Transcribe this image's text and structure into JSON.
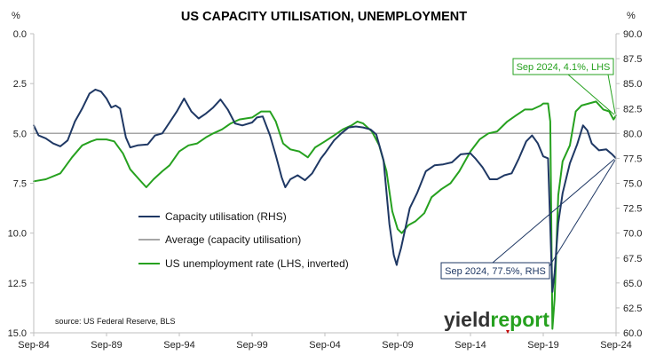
{
  "chart_data": {
    "type": "line",
    "title": "US CAPACITY UTILISATION, UNEMPLOYMENT",
    "left_axis": {
      "unit": "%",
      "range": [
        15,
        0
      ],
      "inverted": true,
      "ticks": [
        "0.0",
        "2.5",
        "5.0",
        "7.5",
        "10.0",
        "12.5",
        "15.0"
      ]
    },
    "right_axis": {
      "unit": "%",
      "range": [
        60,
        90
      ],
      "ticks": [
        "90.0",
        "87.5",
        "85.0",
        "82.5",
        "80.0",
        "77.5",
        "75.0",
        "72.5",
        "70.0",
        "67.5",
        "65.0",
        "62.5",
        "60.0"
      ]
    },
    "x_axis": {
      "range": [
        1984.67,
        2024.67
      ],
      "ticks": [
        "Sep-84",
        "Sep-89",
        "Sep-94",
        "Sep-99",
        "Sep-04",
        "Sep-09",
        "Sep-14",
        "Sep-19",
        "Sep-24"
      ]
    },
    "grid": false,
    "legend_placement": "center-left",
    "series": [
      {
        "name": "Capacity utilisation (RHS)",
        "axis": "right",
        "color": "#1F3864",
        "points": [
          [
            1984.67,
            80.8
          ],
          [
            1985.0,
            79.8
          ],
          [
            1985.5,
            79.5
          ],
          [
            1986.0,
            79.0
          ],
          [
            1986.5,
            78.7
          ],
          [
            1987.0,
            79.3
          ],
          [
            1987.5,
            81.2
          ],
          [
            1988.0,
            82.5
          ],
          [
            1988.5,
            84.0
          ],
          [
            1988.9,
            84.4
          ],
          [
            1989.3,
            84.2
          ],
          [
            1989.67,
            83.5
          ],
          [
            1990.0,
            82.6
          ],
          [
            1990.3,
            82.8
          ],
          [
            1990.6,
            82.5
          ],
          [
            1991.0,
            79.6
          ],
          [
            1991.3,
            78.6
          ],
          [
            1991.8,
            78.8
          ],
          [
            1992.5,
            78.9
          ],
          [
            1993.0,
            79.8
          ],
          [
            1993.5,
            80.0
          ],
          [
            1994.0,
            81.1
          ],
          [
            1994.5,
            82.2
          ],
          [
            1995.0,
            83.5
          ],
          [
            1995.5,
            82.2
          ],
          [
            1996.0,
            81.5
          ],
          [
            1996.5,
            82.0
          ],
          [
            1997.0,
            82.6
          ],
          [
            1997.5,
            83.4
          ],
          [
            1998.0,
            82.4
          ],
          [
            1998.5,
            81.0
          ],
          [
            1999.0,
            80.8
          ],
          [
            1999.67,
            81.1
          ],
          [
            2000.0,
            81.6
          ],
          [
            2000.4,
            81.7
          ],
          [
            2000.9,
            79.8
          ],
          [
            2001.3,
            77.8
          ],
          [
            2001.7,
            75.6
          ],
          [
            2001.95,
            74.6
          ],
          [
            2002.3,
            75.4
          ],
          [
            2002.8,
            75.8
          ],
          [
            2003.3,
            75.3
          ],
          [
            2003.8,
            76.0
          ],
          [
            2004.4,
            77.5
          ],
          [
            2004.67,
            78.0
          ],
          [
            2005.3,
            79.3
          ],
          [
            2005.8,
            80.0
          ],
          [
            2006.3,
            80.6
          ],
          [
            2006.8,
            80.7
          ],
          [
            2007.3,
            80.6
          ],
          [
            2007.8,
            80.4
          ],
          [
            2008.2,
            79.9
          ],
          [
            2008.7,
            77.3
          ],
          [
            2009.1,
            70.9
          ],
          [
            2009.4,
            67.8
          ],
          [
            2009.6,
            66.8
          ],
          [
            2009.67,
            67.3
          ],
          [
            2009.9,
            68.5
          ],
          [
            2010.5,
            72.5
          ],
          [
            2011.0,
            74.0
          ],
          [
            2011.6,
            76.2
          ],
          [
            2012.2,
            76.8
          ],
          [
            2012.8,
            76.9
          ],
          [
            2013.4,
            77.1
          ],
          [
            2014.0,
            77.9
          ],
          [
            2014.67,
            78.0
          ],
          [
            2015.0,
            77.5
          ],
          [
            2015.5,
            76.6
          ],
          [
            2016.0,
            75.4
          ],
          [
            2016.5,
            75.4
          ],
          [
            2017.0,
            75.8
          ],
          [
            2017.5,
            76.0
          ],
          [
            2018.0,
            77.5
          ],
          [
            2018.5,
            79.2
          ],
          [
            2018.9,
            79.8
          ],
          [
            2019.3,
            79.0
          ],
          [
            2019.67,
            77.7
          ],
          [
            2020.0,
            77.5
          ],
          [
            2020.3,
            64.1
          ],
          [
            2020.45,
            66.0
          ],
          [
            2020.7,
            71.0
          ],
          [
            2021.0,
            74.0
          ],
          [
            2021.5,
            77.0
          ],
          [
            2022.0,
            78.9
          ],
          [
            2022.4,
            80.8
          ],
          [
            2022.7,
            80.3
          ],
          [
            2023.0,
            79.0
          ],
          [
            2023.5,
            78.3
          ],
          [
            2024.0,
            78.4
          ],
          [
            2024.4,
            77.9
          ],
          [
            2024.67,
            77.5
          ]
        ]
      },
      {
        "name": "Average (capacity utilisation)",
        "axis": "right",
        "color": "#A6A6A6",
        "points": [
          [
            1984.67,
            80.0
          ],
          [
            2024.67,
            80.0
          ]
        ]
      },
      {
        "name": "US unemployment rate (LHS, inverted)",
        "axis": "left",
        "color": "#26A11F",
        "points": [
          [
            1984.67,
            7.4
          ],
          [
            1985.5,
            7.3
          ],
          [
            1986.5,
            7.0
          ],
          [
            1987.3,
            6.2
          ],
          [
            1988.0,
            5.6
          ],
          [
            1988.6,
            5.4
          ],
          [
            1989.0,
            5.3
          ],
          [
            1989.67,
            5.3
          ],
          [
            1990.2,
            5.4
          ],
          [
            1990.8,
            6.0
          ],
          [
            1991.3,
            6.8
          ],
          [
            1991.9,
            7.3
          ],
          [
            1992.4,
            7.7
          ],
          [
            1992.9,
            7.3
          ],
          [
            1993.5,
            6.9
          ],
          [
            1994.0,
            6.6
          ],
          [
            1994.67,
            5.9
          ],
          [
            1995.3,
            5.6
          ],
          [
            1995.9,
            5.5
          ],
          [
            1996.5,
            5.2
          ],
          [
            1997.0,
            5.0
          ],
          [
            1997.6,
            4.8
          ],
          [
            1998.2,
            4.5
          ],
          [
            1998.8,
            4.3
          ],
          [
            1999.67,
            4.2
          ],
          [
            2000.3,
            3.9
          ],
          [
            2000.9,
            3.9
          ],
          [
            2001.3,
            4.4
          ],
          [
            2001.8,
            5.5
          ],
          [
            2002.3,
            5.8
          ],
          [
            2002.9,
            5.9
          ],
          [
            2003.5,
            6.2
          ],
          [
            2004.0,
            5.7
          ],
          [
            2004.67,
            5.4
          ],
          [
            2005.3,
            5.1
          ],
          [
            2005.9,
            4.8
          ],
          [
            2006.5,
            4.6
          ],
          [
            2006.9,
            4.4
          ],
          [
            2007.3,
            4.5
          ],
          [
            2007.9,
            4.9
          ],
          [
            2008.4,
            5.6
          ],
          [
            2008.9,
            6.9
          ],
          [
            2009.3,
            8.9
          ],
          [
            2009.67,
            9.8
          ],
          [
            2009.95,
            10.0
          ],
          [
            2010.4,
            9.6
          ],
          [
            2010.9,
            9.4
          ],
          [
            2011.5,
            9.0
          ],
          [
            2012.0,
            8.2
          ],
          [
            2012.67,
            7.8
          ],
          [
            2013.3,
            7.5
          ],
          [
            2013.9,
            6.9
          ],
          [
            2014.67,
            5.9
          ],
          [
            2015.3,
            5.3
          ],
          [
            2015.9,
            5.0
          ],
          [
            2016.5,
            4.9
          ],
          [
            2017.2,
            4.4
          ],
          [
            2017.8,
            4.1
          ],
          [
            2018.4,
            3.8
          ],
          [
            2018.9,
            3.8
          ],
          [
            2019.5,
            3.6
          ],
          [
            2019.67,
            3.5
          ],
          [
            2020.0,
            3.5
          ],
          [
            2020.15,
            4.4
          ],
          [
            2020.3,
            14.8
          ],
          [
            2020.45,
            13.3
          ],
          [
            2020.7,
            8.1
          ],
          [
            2021.0,
            6.4
          ],
          [
            2021.5,
            5.6
          ],
          [
            2021.9,
            3.9
          ],
          [
            2022.3,
            3.6
          ],
          [
            2022.8,
            3.5
          ],
          [
            2023.3,
            3.4
          ],
          [
            2023.8,
            3.8
          ],
          [
            2024.2,
            3.9
          ],
          [
            2024.5,
            4.3
          ],
          [
            2024.67,
            4.1
          ]
        ]
      }
    ],
    "annotations": [
      {
        "text": "Sep 2024, 4.1%, LHS",
        "color": "#26A11F"
      },
      {
        "text": "Sep 2024, 77.5%, RHS",
        "color": "#1F3864"
      }
    ],
    "source": "source: US Federal Reserve, BLS",
    "logo": {
      "left": "yield",
      "right": "report"
    }
  }
}
